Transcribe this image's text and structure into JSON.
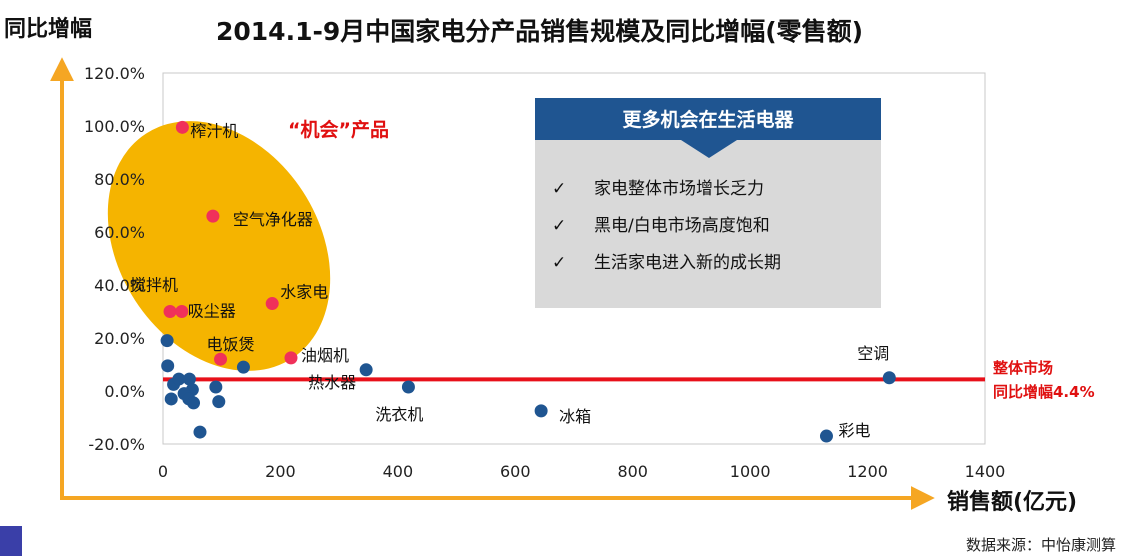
{
  "page": {
    "source": "数据来源：中怡康测算"
  },
  "callout": {
    "title": "更多机会在生活电器",
    "check": "✓",
    "items": [
      "家电整体市场增长乏力",
      "黑电/白电市场高度饱和",
      "生活家电进入新的成长期"
    ]
  },
  "annotations": {
    "opportunity": "“机会”产品",
    "market_line_1": "整体市场",
    "market_line_2": "同比增幅4.4%"
  },
  "colors": {
    "opportunity_ellipse": "#f5b400",
    "opportunity_point": "#f0315a",
    "other_point": "#1f5591",
    "market_line": "#e8101a",
    "axis_arrow": "#f5a623",
    "callout_header": "#1f5591",
    "callout_body": "#d9d9d9"
  },
  "chart_data": {
    "type": "scatter",
    "title": "2014.1-9月中国家电分产品销售规模及同比增幅(零售额)",
    "xlabel": "销售额(亿元)",
    "ylabel": "同比增幅",
    "xlim": [
      0,
      1400
    ],
    "ylim": [
      -20,
      120
    ],
    "x_ticks": [
      0,
      200,
      400,
      600,
      800,
      1000,
      1200,
      1400
    ],
    "y_ticks": [
      -20,
      0,
      20,
      40,
      60,
      80,
      100,
      120
    ],
    "x_tick_labels": [
      "0",
      "200",
      "400",
      "600",
      "800",
      "1000",
      "1200",
      "1400"
    ],
    "y_tick_labels": [
      "-20.0%",
      "0.0%",
      "20.0%",
      "40.0%",
      "60.0%",
      "80.0%",
      "100.0%",
      "120.0%"
    ],
    "grid": false,
    "reference_line": {
      "y": 4.4
    },
    "series": [
      {
        "group": "opportunity",
        "points": [
          {
            "label": "榨汁机",
            "x": 33,
            "y": 99.5
          },
          {
            "label": "空气净化器",
            "x": 85,
            "y": 66
          },
          {
            "label": "搅拌机",
            "x": 12,
            "y": 30
          },
          {
            "label": "吸尘器",
            "x": 32,
            "y": 30
          },
          {
            "label": "水家电",
            "x": 186,
            "y": 33
          },
          {
            "label": "电饭煲",
            "x": 98,
            "y": 12
          },
          {
            "label": "油烟机",
            "x": 218,
            "y": 12.5
          }
        ]
      },
      {
        "group": "other",
        "points": [
          {
            "label": "",
            "x": 7,
            "y": 19
          },
          {
            "label": "",
            "x": 8,
            "y": 9.5
          },
          {
            "label": "",
            "x": 137,
            "y": 9
          },
          {
            "label": "热水器",
            "x": 346,
            "y": 8
          },
          {
            "label": "洗衣机",
            "x": 418,
            "y": 1.5
          },
          {
            "label": "冰箱",
            "x": 644,
            "y": -7.5
          },
          {
            "label": "空调",
            "x": 1237,
            "y": 5
          },
          {
            "label": "彩电",
            "x": 1130,
            "y": -17
          },
          {
            "label": "",
            "x": 18,
            "y": 2.5
          },
          {
            "label": "",
            "x": 27,
            "y": 4.5
          },
          {
            "label": "",
            "x": 45,
            "y": 4.5
          },
          {
            "label": "",
            "x": 50,
            "y": 0.5
          },
          {
            "label": "",
            "x": 36,
            "y": -1
          },
          {
            "label": "",
            "x": 44,
            "y": -3
          },
          {
            "label": "",
            "x": 14,
            "y": -3
          },
          {
            "label": "",
            "x": 52,
            "y": -4.5
          },
          {
            "label": "",
            "x": 90,
            "y": 1.5
          },
          {
            "label": "",
            "x": 95,
            "y": -4
          },
          {
            "label": "",
            "x": 63,
            "y": -15.5
          }
        ]
      }
    ]
  }
}
